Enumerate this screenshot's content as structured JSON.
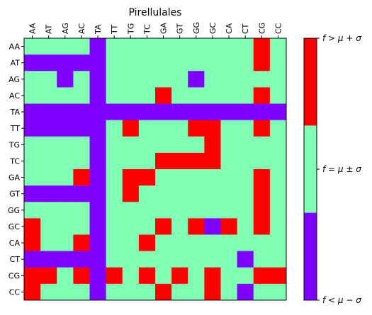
{
  "chart_data": {
    "type": "heatmap",
    "title": "Pirellulales",
    "x_labels": [
      "AA",
      "AT",
      "AG",
      "AC",
      "TA",
      "TT",
      "TG",
      "TC",
      "GA",
      "GT",
      "GG",
      "GC",
      "CA",
      "CT",
      "CG",
      "CC"
    ],
    "y_labels": [
      "AA",
      "AT",
      "AG",
      "AC",
      "TA",
      "TT",
      "TG",
      "TC",
      "GA",
      "GT",
      "GG",
      "GC",
      "CA",
      "CT",
      "CG",
      "CC"
    ],
    "x_tick_position": "top",
    "x_tick_rotation": 90,
    "category_codes": {
      "-1": "below",
      "0": "within",
      "1": "above"
    },
    "colors": {
      "below": "#8000ff",
      "within": "#80ffb4",
      "above": "#ff0000"
    },
    "colorbar": {
      "labels": [
        "f > μ + σ",
        "f = μ ± σ",
        "f < μ − σ"
      ],
      "segments_top_to_bottom": [
        "above",
        "within",
        "below"
      ]
    },
    "matrix": [
      [
        0,
        0,
        0,
        0,
        -1,
        0,
        0,
        0,
        0,
        0,
        0,
        0,
        0,
        0,
        1,
        0
      ],
      [
        -1,
        -1,
        -1,
        -1,
        -1,
        0,
        0,
        0,
        0,
        0,
        0,
        0,
        0,
        0,
        1,
        0
      ],
      [
        0,
        0,
        -1,
        0,
        -1,
        0,
        0,
        0,
        0,
        0,
        -1,
        0,
        0,
        0,
        0,
        0
      ],
      [
        0,
        0,
        0,
        0,
        -1,
        0,
        0,
        0,
        1,
        0,
        0,
        0,
        0,
        0,
        1,
        0
      ],
      [
        -1,
        -1,
        -1,
        -1,
        -1,
        -1,
        -1,
        -1,
        -1,
        -1,
        -1,
        -1,
        -1,
        -1,
        -1,
        -1
      ],
      [
        -1,
        -1,
        -1,
        -1,
        -1,
        0,
        1,
        0,
        0,
        0,
        1,
        1,
        0,
        0,
        1,
        0
      ],
      [
        0,
        0,
        0,
        0,
        -1,
        0,
        0,
        0,
        0,
        0,
        0,
        1,
        0,
        0,
        0,
        0
      ],
      [
        0,
        0,
        0,
        0,
        -1,
        0,
        0,
        0,
        1,
        1,
        1,
        1,
        0,
        0,
        0,
        0
      ],
      [
        0,
        0,
        0,
        1,
        -1,
        0,
        1,
        1,
        0,
        0,
        0,
        0,
        0,
        0,
        1,
        0
      ],
      [
        -1,
        -1,
        -1,
        -1,
        -1,
        0,
        1,
        0,
        0,
        0,
        0,
        0,
        0,
        0,
        1,
        0
      ],
      [
        0,
        0,
        0,
        0,
        -1,
        0,
        0,
        0,
        0,
        0,
        0,
        0,
        0,
        0,
        1,
        0
      ],
      [
        1,
        0,
        0,
        0,
        -1,
        0,
        0,
        0,
        1,
        0,
        1,
        -1,
        1,
        0,
        1,
        0
      ],
      [
        1,
        0,
        0,
        1,
        -1,
        0,
        0,
        1,
        0,
        0,
        0,
        0,
        0,
        0,
        0,
        0
      ],
      [
        -1,
        -1,
        -1,
        -1,
        -1,
        0,
        0,
        0,
        0,
        0,
        0,
        0,
        0,
        -1,
        0,
        0
      ],
      [
        1,
        1,
        0,
        1,
        -1,
        1,
        0,
        1,
        0,
        1,
        0,
        1,
        0,
        0,
        1,
        1
      ],
      [
        1,
        0,
        0,
        0,
        -1,
        0,
        0,
        0,
        1,
        0,
        0,
        1,
        0,
        -1,
        0,
        0
      ]
    ]
  }
}
